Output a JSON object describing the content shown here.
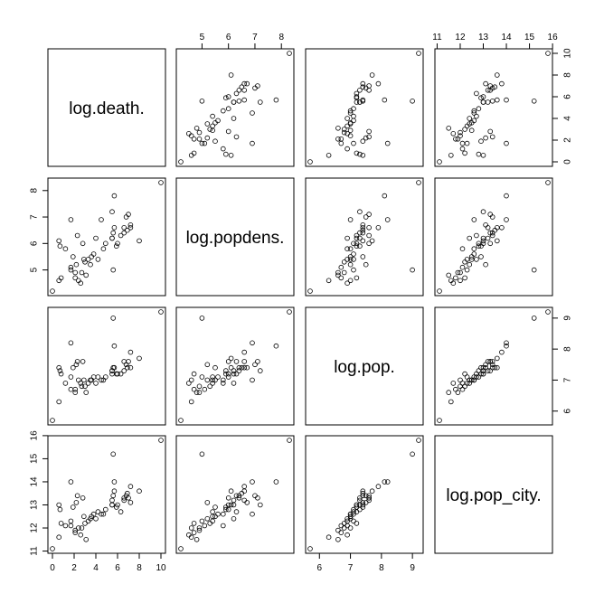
{
  "chart_data": {
    "type": "scatter-matrix",
    "variables": [
      {
        "name": "log.death.",
        "range": [
          0,
          10
        ],
        "ticks": [
          0,
          2,
          4,
          6,
          8,
          10
        ],
        "values": [
          0.0,
          0.6,
          2.1,
          1.7,
          3.0,
          3.3,
          3.6,
          4.7,
          4.9,
          5.9,
          6.0,
          5.5,
          5.6,
          5.7,
          2.1,
          2.7,
          3.5,
          3.8,
          4.2,
          5.5,
          6.6,
          6.9,
          3.1,
          2.6,
          2.4,
          0.8,
          1.7,
          1.9,
          2.2,
          2.8,
          4.0,
          4.5,
          5.5,
          6.8,
          6.3,
          7.2,
          7.0,
          5.7,
          2.9,
          1.2,
          6.6,
          0.7,
          0.6,
          2.3,
          1.7,
          8.0,
          7.2,
          5.6,
          10.0
        ]
      },
      {
        "name": "log.popdens.",
        "range": [
          4.2,
          8.3
        ],
        "ticks": [
          5,
          6,
          7,
          8
        ],
        "values": [
          4.2,
          4.6,
          4.9,
          5.1,
          5.3,
          5.4,
          5.5,
          5.8,
          6.0,
          5.9,
          6.0,
          6.2,
          6.4,
          6.6,
          4.7,
          4.9,
          5.2,
          5.6,
          5.4,
          6.2,
          6.4,
          6.5,
          4.8,
          4.5,
          4.6,
          4.7,
          5.0,
          5.5,
          5.2,
          6.0,
          6.2,
          6.9,
          7.2,
          7.0,
          6.3,
          6.7,
          7.1,
          7.8,
          5.4,
          5.8,
          6.6,
          5.9,
          6.1,
          6.3,
          6.9,
          6.1,
          6.6,
          5.0,
          8.3
        ]
      },
      {
        "name": "log.pop.",
        "range": [
          5.7,
          9.2
        ],
        "ticks": [
          6.0,
          7.0,
          8.0,
          9.0
        ],
        "values": [
          5.7,
          6.3,
          6.6,
          6.7,
          6.8,
          6.9,
          7.0,
          7.0,
          7.1,
          7.2,
          7.2,
          7.3,
          7.4,
          7.4,
          6.7,
          6.8,
          7.0,
          7.1,
          7.1,
          7.2,
          7.3,
          7.4,
          6.6,
          6.9,
          7.0,
          7.2,
          7.1,
          7.4,
          7.5,
          7.6,
          6.9,
          7.0,
          7.3,
          7.5,
          7.2,
          7.4,
          7.6,
          8.1,
          7.0,
          6.9,
          7.6,
          7.3,
          7.4,
          7.6,
          8.2,
          7.7,
          7.9,
          9.0,
          9.2
        ]
      },
      {
        "name": "log.pop_city.",
        "range": [
          11.1,
          15.8
        ],
        "ticks": [
          11,
          12,
          13,
          14,
          15,
          16
        ],
        "values": [
          11.1,
          11.6,
          11.9,
          12.1,
          12.2,
          12.3,
          12.5,
          12.6,
          12.8,
          12.9,
          13.0,
          13.2,
          13.4,
          13.6,
          11.8,
          12.0,
          12.4,
          12.6,
          12.7,
          13.0,
          13.3,
          13.5,
          11.5,
          11.7,
          12.0,
          12.2,
          12.3,
          12.9,
          13.1,
          13.3,
          12.4,
          12.6,
          13.0,
          13.4,
          12.7,
          13.1,
          13.3,
          14.0,
          12.5,
          12.1,
          13.2,
          12.8,
          13.0,
          13.4,
          14.0,
          13.6,
          13.8,
          15.2,
          15.8
        ]
      }
    ]
  }
}
